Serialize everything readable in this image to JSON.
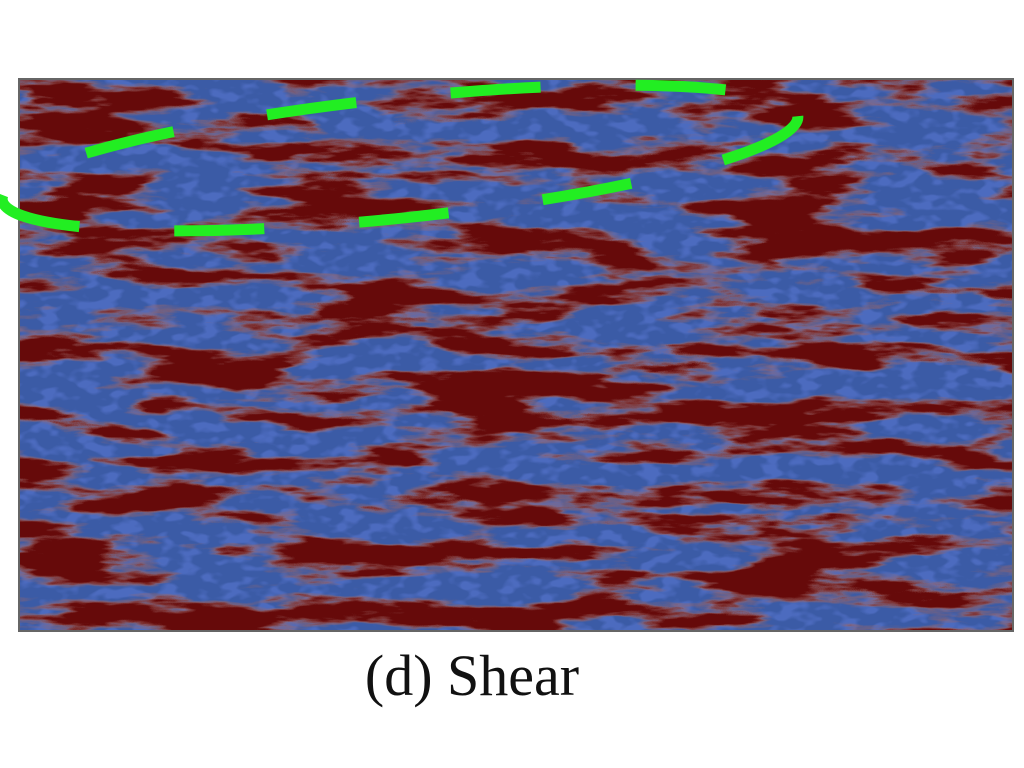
{
  "figure": {
    "caption": "(d) Shear"
  }
}
